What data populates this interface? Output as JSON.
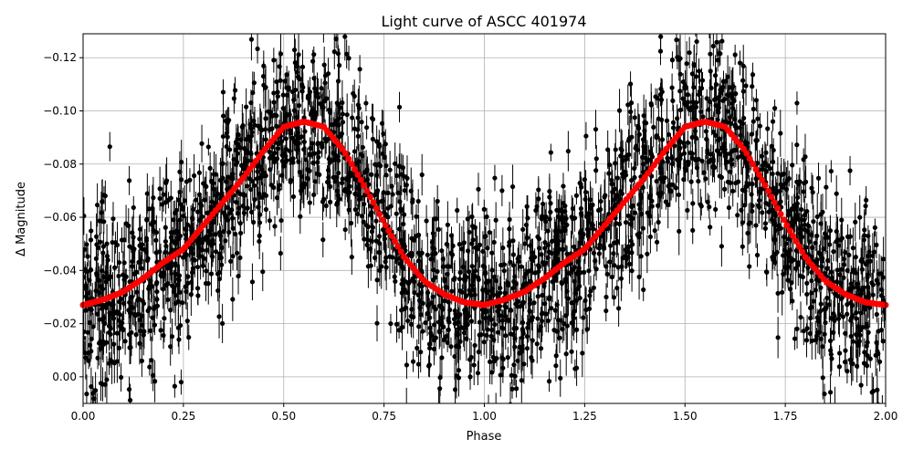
{
  "chart_data": {
    "type": "scatter",
    "title": "Light curve of ASCC 401974",
    "xlabel": "Phase",
    "ylabel": "Δ Magnitude",
    "xlim": [
      0,
      2
    ],
    "ylim": [
      0.01,
      -0.129
    ],
    "y_inverted": true,
    "grid": true,
    "xticks": [
      "0.00",
      "0.25",
      "0.50",
      "0.75",
      "1.00",
      "1.25",
      "1.50",
      "1.75",
      "2.00"
    ],
    "xtick_values": [
      0,
      0.25,
      0.5,
      0.75,
      1.0,
      1.25,
      1.5,
      1.75,
      2.0
    ],
    "yticks": [
      "−0.12",
      "−0.10",
      "−0.08",
      "−0.06",
      "−0.04",
      "−0.02",
      "0.00"
    ],
    "ytick_values": [
      -0.12,
      -0.1,
      -0.08,
      -0.06,
      -0.04,
      -0.02,
      0.0
    ],
    "series": [
      {
        "kind": "binned-mean-line",
        "color": "#ff0000",
        "x": [
          0,
          0.05,
          0.1,
          0.15,
          0.2,
          0.25,
          0.3,
          0.35,
          0.4,
          0.45,
          0.5,
          0.55,
          0.6,
          0.65,
          0.7,
          0.75,
          0.8,
          0.85,
          0.9,
          0.95,
          1.0,
          1.05,
          1.1,
          1.15,
          1.2,
          1.25,
          1.3,
          1.35,
          1.4,
          1.45,
          1.5,
          1.55,
          1.6,
          1.65,
          1.7,
          1.75,
          1.8,
          1.85,
          1.9,
          1.95,
          2.0
        ],
        "y": [
          -0.027,
          -0.029,
          -0.032,
          -0.037,
          -0.043,
          -0.048,
          -0.057,
          -0.066,
          -0.075,
          -0.085,
          -0.094,
          -0.096,
          -0.094,
          -0.085,
          -0.072,
          -0.058,
          -0.045,
          -0.036,
          -0.031,
          -0.028,
          -0.027,
          -0.029,
          -0.032,
          -0.037,
          -0.043,
          -0.048,
          -0.057,
          -0.066,
          -0.075,
          -0.085,
          -0.094,
          -0.096,
          -0.094,
          -0.085,
          -0.072,
          -0.058,
          -0.045,
          -0.036,
          -0.031,
          -0.028,
          -0.027
        ]
      },
      {
        "kind": "observations-with-errorbars",
        "color": "#000000"
      }
    ]
  }
}
